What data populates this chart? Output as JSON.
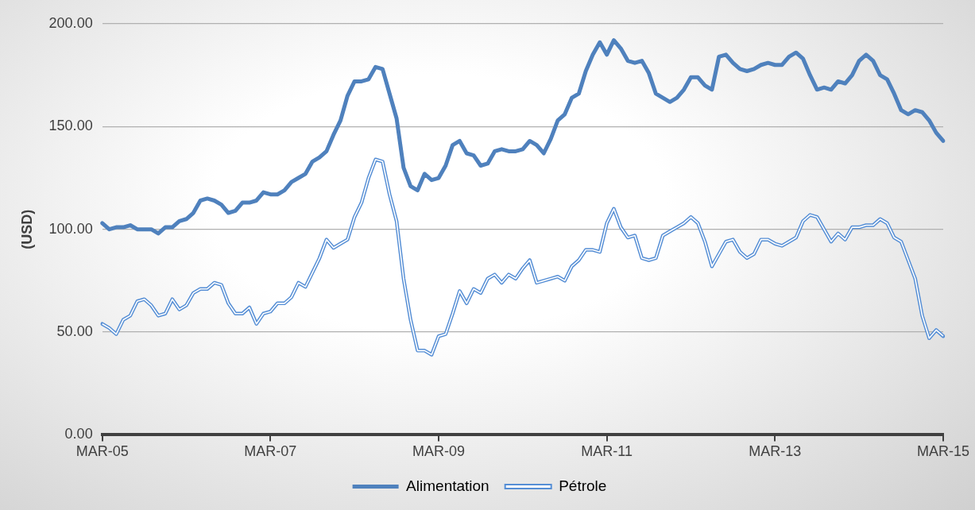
{
  "chart_data": {
    "type": "line",
    "ylabel": "(USD)",
    "categories": [
      "MAR-05",
      null,
      null,
      null,
      null,
      null,
      null,
      null,
      null,
      null,
      null,
      null,
      null,
      null,
      null,
      null,
      null,
      null,
      null,
      null,
      null,
      null,
      null,
      null,
      "MAR-07",
      null,
      null,
      null,
      null,
      null,
      null,
      null,
      null,
      null,
      null,
      null,
      null,
      null,
      null,
      null,
      null,
      null,
      null,
      null,
      null,
      null,
      null,
      null,
      "MAR-09",
      null,
      null,
      null,
      null,
      null,
      null,
      null,
      null,
      null,
      null,
      null,
      null,
      null,
      null,
      null,
      null,
      null,
      null,
      null,
      null,
      null,
      null,
      null,
      "MAR-11",
      null,
      null,
      null,
      null,
      null,
      null,
      null,
      null,
      null,
      null,
      null,
      null,
      null,
      null,
      null,
      null,
      null,
      null,
      null,
      null,
      null,
      null,
      null,
      "MAR-13",
      null,
      null,
      null,
      null,
      null,
      null,
      null,
      null,
      null,
      null,
      null,
      null,
      null,
      null,
      null,
      null,
      null,
      null,
      null,
      null,
      null,
      null,
      null,
      "MAR-15"
    ],
    "series": [
      {
        "name": "Alimentation",
        "color": "#4f81bd",
        "values": [
          103,
          100,
          101,
          101,
          102,
          100,
          100,
          100,
          98,
          101,
          101,
          104,
          105,
          108,
          114,
          115,
          114,
          112,
          108,
          109,
          113,
          113,
          114,
          118,
          117,
          117,
          119,
          123,
          125,
          127,
          133,
          135,
          138,
          146,
          153,
          165,
          172,
          172,
          173,
          179,
          178,
          166,
          154,
          130,
          121,
          119,
          127,
          124,
          125,
          131,
          141,
          143,
          137,
          136,
          131,
          132,
          138,
          139,
          138,
          138,
          139,
          143,
          141,
          137,
          144,
          153,
          156,
          164,
          166,
          177,
          185,
          191,
          185,
          192,
          188,
          182,
          181,
          182,
          176,
          166,
          164,
          162,
          164,
          168,
          174,
          174,
          170,
          168,
          184,
          185,
          181,
          178,
          177,
          178,
          180,
          181,
          180,
          180,
          184,
          186,
          183,
          175,
          168,
          169,
          168,
          172,
          171,
          175,
          182,
          185,
          182,
          175,
          173,
          166,
          158,
          156,
          158,
          157,
          153,
          147,
          143
        ]
      },
      {
        "name": "Pétrole",
        "color": "#558ed5",
        "values": [
          54,
          52,
          49,
          56,
          58,
          65,
          66,
          63,
          58,
          59,
          66,
          61,
          63,
          69,
          71,
          71,
          74,
          73,
          64,
          59,
          59,
          62,
          54,
          59,
          60,
          64,
          64,
          67,
          74,
          72,
          79,
          86,
          95,
          91,
          93,
          95,
          106,
          113,
          125,
          134,
          133,
          117,
          104,
          76,
          56,
          41,
          41,
          39,
          48,
          49,
          59,
          70,
          64,
          71,
          69,
          76,
          78,
          74,
          78,
          76,
          81,
          85,
          74,
          75,
          76,
          77,
          75,
          82,
          85,
          90,
          90,
          89,
          103,
          110,
          101,
          96,
          97,
          86,
          85,
          86,
          97,
          99,
          101,
          103,
          106,
          103,
          94,
          82,
          88,
          94,
          95,
          89,
          86,
          88,
          95,
          95,
          93,
          92,
          94,
          96,
          104,
          107,
          106,
          100,
          94,
          98,
          95,
          101,
          101,
          102,
          102,
          105,
          103,
          96,
          94,
          85,
          76,
          58,
          47,
          51,
          48
        ]
      }
    ],
    "ylim": [
      0,
      200
    ],
    "yticks": [
      {
        "value": 0,
        "label": "0.00"
      },
      {
        "value": 50,
        "label": "50.00"
      },
      {
        "value": 100,
        "label": "100.00"
      },
      {
        "value": 150,
        "label": "150.00"
      },
      {
        "value": 200,
        "label": "200.00"
      }
    ],
    "grid": "y",
    "legend": "bottom",
    "marker": "none"
  }
}
